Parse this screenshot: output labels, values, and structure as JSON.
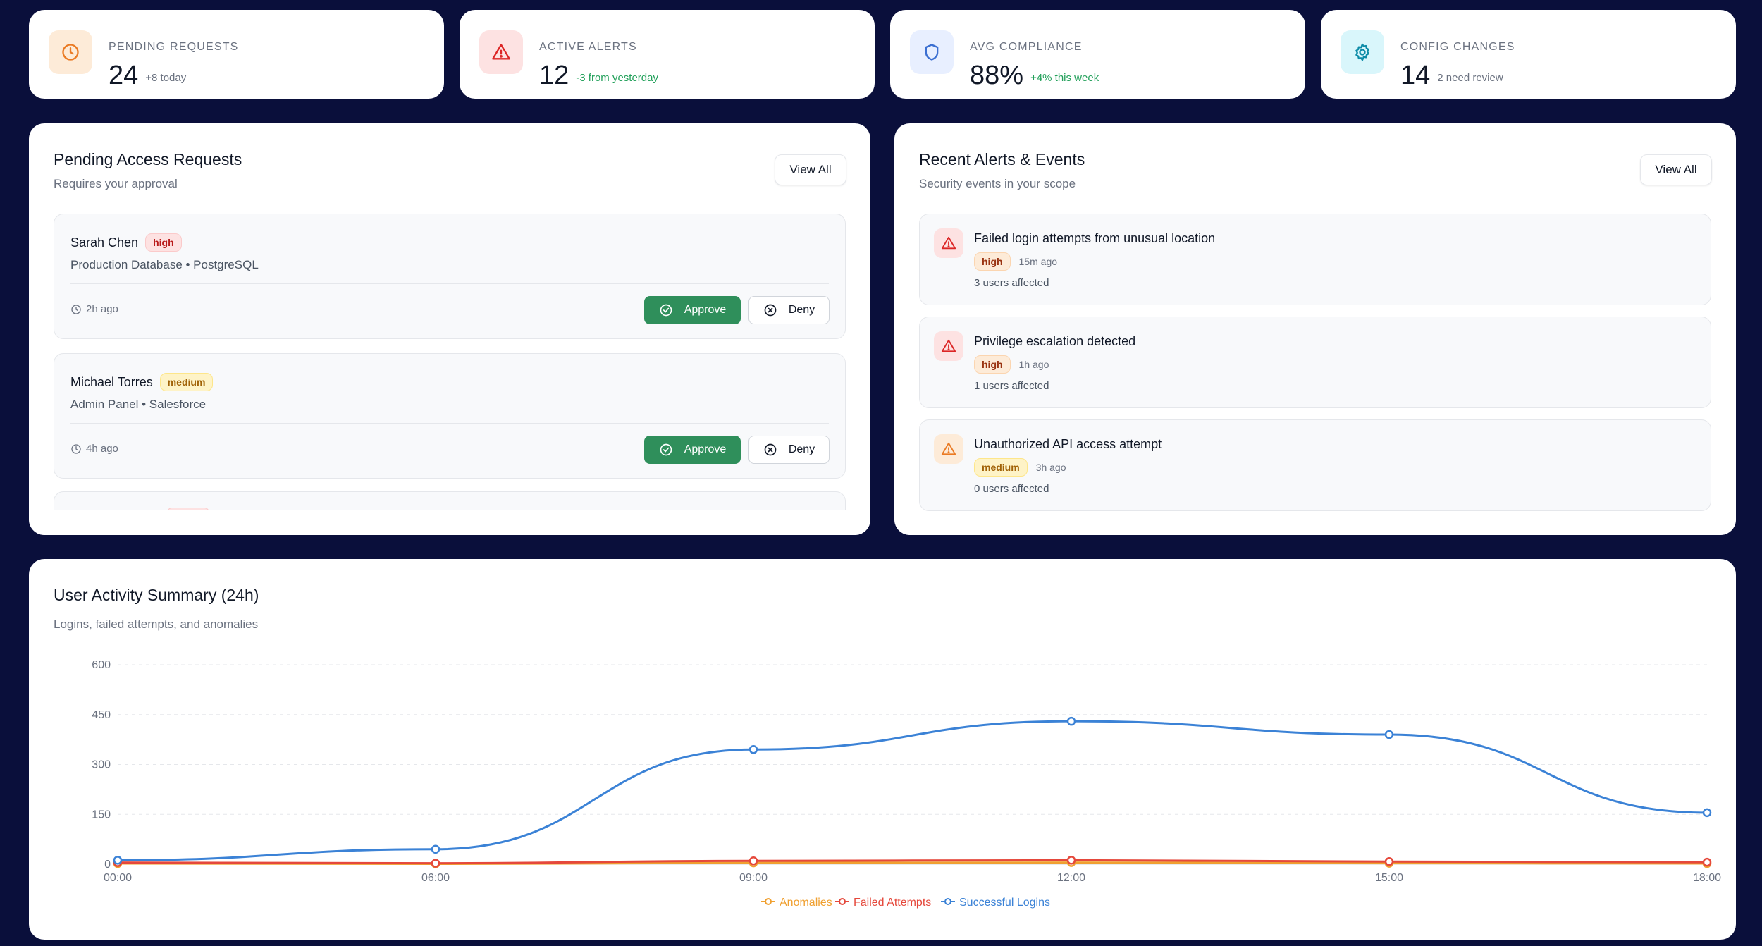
{
  "stats": [
    {
      "label": "PENDING REQUESTS",
      "value": "24",
      "delta": "+8 today",
      "icon": "clock-icon",
      "icon_color": "#ea7a23",
      "bg": "#fdebd8",
      "delta_color": "#6b7280"
    },
    {
      "label": "ACTIVE ALERTS",
      "value": "12",
      "delta": "-3 from yesterday",
      "icon": "warning-icon",
      "icon_color": "#dc2626",
      "bg": "#fde2e2",
      "delta_color": "#22a05a"
    },
    {
      "label": "AVG COMPLIANCE",
      "value": "88%",
      "delta": "+4% this week",
      "icon": "shield-icon",
      "icon_color": "#3b6fd1",
      "bg": "#e8efff",
      "delta_color": "#22a05a"
    },
    {
      "label": "CONFIG CHANGES",
      "value": "14",
      "delta": "2 need review",
      "icon": "gear-icon",
      "icon_color": "#0e8ca8",
      "bg": "#d9f6fb",
      "delta_color": "#6b7280"
    }
  ],
  "requests": {
    "title": "Pending Access Requests",
    "subtitle": "Requires your approval",
    "view_all": "View All",
    "approve_label": "Approve",
    "deny_label": "Deny",
    "items": [
      {
        "name": "Sarah Chen",
        "priority": "high",
        "resource": "Production Database • PostgreSQL",
        "time": "2h ago"
      },
      {
        "name": "Michael Torres",
        "priority": "medium",
        "resource": "Admin Panel • Salesforce",
        "time": "4h ago"
      }
    ]
  },
  "alerts": {
    "title": "Recent Alerts & Events",
    "subtitle": "Security events in your scope",
    "view_all": "View All",
    "items": [
      {
        "title": "Failed login attempts from unusual location",
        "severity": "high",
        "ago": "15m ago",
        "affected": "3 users affected"
      },
      {
        "title": "Privilege escalation detected",
        "severity": "high",
        "ago": "1h ago",
        "affected": "1 users affected"
      },
      {
        "title": "Unauthorized API access attempt",
        "severity": "medium",
        "ago": "3h ago",
        "affected": "0 users affected"
      }
    ]
  },
  "activity": {
    "title": "User Activity Summary (24h)",
    "subtitle": "Logins, failed attempts, and anomalies"
  },
  "chart_data": {
    "type": "line",
    "x": [
      "00:00",
      "06:00",
      "09:00",
      "12:00",
      "15:00",
      "18:00"
    ],
    "ylim": [
      0,
      600
    ],
    "yticks": [
      0,
      150,
      300,
      450,
      600
    ],
    "grid": true,
    "legend_placement": "bottom-center",
    "series": [
      {
        "name": "Anomalies",
        "color": "#f0a030",
        "values": [
          2,
          1,
          4,
          5,
          3,
          2
        ]
      },
      {
        "name": "Failed Attempts",
        "color": "#e5483b",
        "values": [
          5,
          3,
          10,
          12,
          8,
          6
        ]
      },
      {
        "name": "Successful Logins",
        "color": "#3b82d6",
        "values": [
          12,
          45,
          345,
          430,
          390,
          155
        ]
      }
    ]
  }
}
